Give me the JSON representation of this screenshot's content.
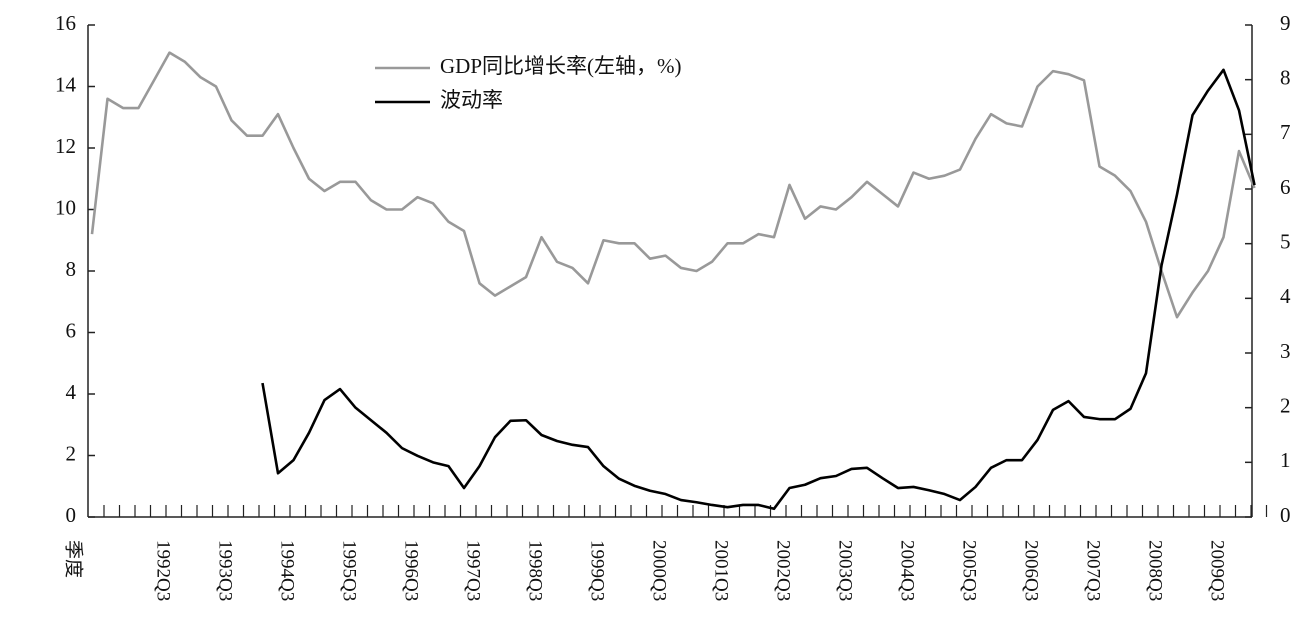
{
  "chart_data": {
    "type": "line",
    "x_label": "季度",
    "categories": [
      null,
      null,
      null,
      null,
      "1992Q3",
      null,
      null,
      null,
      "1993Q3",
      null,
      null,
      null,
      "1994Q3",
      null,
      null,
      null,
      "1995Q3",
      null,
      null,
      null,
      "1996Q3",
      null,
      null,
      null,
      "1997Q3",
      null,
      null,
      null,
      "1998Q3",
      null,
      null,
      null,
      "1999Q3",
      null,
      null,
      null,
      "2000Q3",
      null,
      null,
      null,
      "2001Q3",
      null,
      null,
      null,
      "2002Q3",
      null,
      null,
      null,
      "2003Q3",
      null,
      null,
      null,
      "2004Q3",
      null,
      null,
      null,
      "2005Q3",
      null,
      null,
      null,
      "2006Q3",
      null,
      null,
      null,
      "2007Q3",
      null,
      null,
      null,
      "2008Q3",
      null,
      null,
      null,
      "2009Q3",
      null,
      null,
      null
    ],
    "series": [
      {
        "name": "GDP同比增长率(左轴，%)",
        "color": "#999999",
        "axis": "y",
        "values": [
          9.2,
          13.6,
          13.3,
          13.3,
          14.2,
          15.1,
          14.8,
          14.3,
          14.0,
          12.9,
          12.4,
          12.4,
          13.1,
          12.0,
          11.0,
          10.6,
          10.9,
          10.9,
          10.3,
          10.0,
          10.0,
          10.4,
          10.2,
          9.6,
          9.3,
          7.6,
          7.2,
          7.5,
          7.8,
          9.1,
          8.3,
          8.1,
          7.6,
          9.0,
          8.9,
          8.9,
          8.4,
          8.5,
          8.1,
          8.0,
          8.3,
          8.9,
          8.9,
          9.2,
          9.1,
          10.8,
          9.7,
          10.1,
          10.0,
          10.4,
          10.9,
          10.5,
          10.1,
          11.2,
          11.0,
          11.1,
          11.3,
          12.3,
          13.1,
          12.8,
          12.7,
          14.0,
          14.5,
          14.4,
          14.2,
          11.4,
          11.1,
          10.6,
          9.6,
          8.0,
          6.5,
          7.3,
          8.0,
          9.1,
          11.9,
          10.7
        ]
      },
      {
        "name": "波动率",
        "color": "#000000",
        "axis": "y2",
        "values": [
          null,
          null,
          null,
          null,
          null,
          null,
          null,
          null,
          null,
          null,
          null,
          2.45,
          0.8,
          1.04,
          1.54,
          2.14,
          2.34,
          2.0,
          1.77,
          1.54,
          1.26,
          1.12,
          1.0,
          0.93,
          0.53,
          0.93,
          1.46,
          1.76,
          1.77,
          1.5,
          1.39,
          1.32,
          1.28,
          0.93,
          0.7,
          0.57,
          0.48,
          0.42,
          0.31,
          0.27,
          0.22,
          0.18,
          0.22,
          0.22,
          0.15,
          0.53,
          0.59,
          0.71,
          0.75,
          0.88,
          0.9,
          0.71,
          0.53,
          0.55,
          0.49,
          0.42,
          0.31,
          0.55,
          0.9,
          1.04,
          1.04,
          1.41,
          1.96,
          2.12,
          1.83,
          1.79,
          1.79,
          1.98,
          2.63,
          4.6,
          5.9,
          7.35,
          7.8,
          8.18,
          7.44,
          6.07
        ]
      }
    ],
    "ylim": [
      0,
      16
    ],
    "yticks": [
      0,
      2,
      4,
      6,
      8,
      10,
      12,
      14,
      16
    ],
    "y2lim": [
      0,
      9
    ],
    "y2ticks": [
      0,
      1,
      2,
      3,
      4,
      5,
      6,
      7,
      8,
      9
    ],
    "legend": "top"
  }
}
